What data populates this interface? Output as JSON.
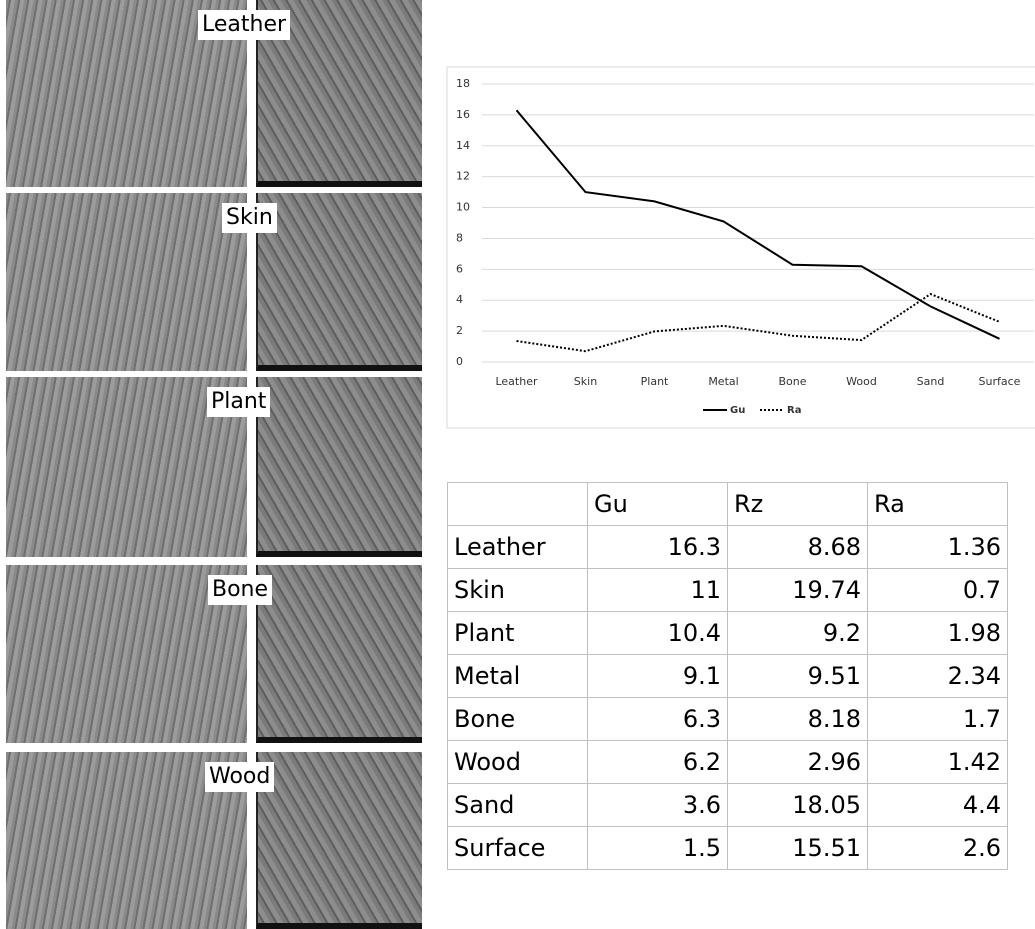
{
  "images": [
    {
      "label": "Leather"
    },
    {
      "label": "Skin"
    },
    {
      "label": "Plant"
    },
    {
      "label": "Bone"
    },
    {
      "label": "Wood"
    }
  ],
  "chart_data": {
    "type": "line",
    "categories": [
      "Leather",
      "Skin",
      "Plant",
      "Metal",
      "Bone",
      "Wood",
      "Sand",
      "Surface"
    ],
    "series": [
      {
        "name": "Gu",
        "color": "#000000",
        "dash": "solid",
        "values": [
          16.3,
          11,
          10.4,
          9.1,
          6.3,
          6.2,
          3.6,
          1.5
        ]
      },
      {
        "name": "Ra",
        "color": "#000000",
        "dash": "dotted",
        "values": [
          1.36,
          0.7,
          1.98,
          2.34,
          1.7,
          1.42,
          4.4,
          2.6
        ]
      }
    ],
    "ylim": [
      0,
      18
    ],
    "yticks": [
      0,
      2,
      4,
      6,
      8,
      10,
      12,
      14,
      16,
      18
    ],
    "grid": true,
    "legend": "bottom"
  },
  "table": {
    "header": [
      "Gu",
      "Rz",
      "Ra"
    ],
    "rows": [
      {
        "label": "Leather",
        "values": [
          16.3,
          8.68,
          1.36
        ]
      },
      {
        "label": "Skin",
        "values": [
          11,
          19.74,
          0.7
        ]
      },
      {
        "label": "Plant",
        "values": [
          10.4,
          9.2,
          1.98
        ]
      },
      {
        "label": "Metal",
        "values": [
          9.1,
          9.51,
          2.34
        ]
      },
      {
        "label": "Bone",
        "values": [
          6.3,
          8.18,
          1.7
        ]
      },
      {
        "label": "Wood",
        "values": [
          6.2,
          2.96,
          1.42
        ]
      },
      {
        "label": "Sand",
        "values": [
          3.6,
          18.05,
          4.4
        ]
      },
      {
        "label": "Surface",
        "values": [
          1.5,
          15.51,
          2.6
        ]
      }
    ]
  }
}
